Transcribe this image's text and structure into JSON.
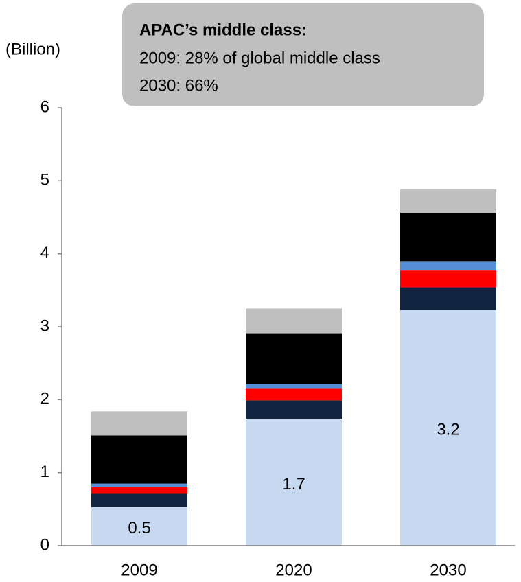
{
  "chart_data": {
    "type": "stacked_bar",
    "y_label": "(Billion)",
    "annotation": {
      "title": "APAC’s middle class:",
      "lines": [
        "2009: 28% of global middle class",
        "2030: 66%"
      ]
    },
    "categories": [
      "2009",
      "2020",
      "2030"
    ],
    "series": [
      {
        "color": "#c6d9f1",
        "values": [
          0.53,
          1.74,
          3.23
        ],
        "value_labels": [
          "0.5",
          "1.7",
          "3.2"
        ]
      },
      {
        "color": "#10243f",
        "values": [
          0.18,
          0.25,
          0.31
        ]
      },
      {
        "color": "#ff0000",
        "values": [
          0.09,
          0.16,
          0.23
        ]
      },
      {
        "color": "#558ed5",
        "values": [
          0.05,
          0.06,
          0.12
        ]
      },
      {
        "color": "#000000",
        "values": [
          0.66,
          0.7,
          0.67
        ]
      },
      {
        "color": "#bfbfbf",
        "values": [
          0.33,
          0.34,
          0.32
        ]
      }
    ],
    "ylim": [
      0,
      6
    ],
    "yticks": [
      0,
      1,
      2,
      3,
      4,
      5,
      6
    ]
  }
}
